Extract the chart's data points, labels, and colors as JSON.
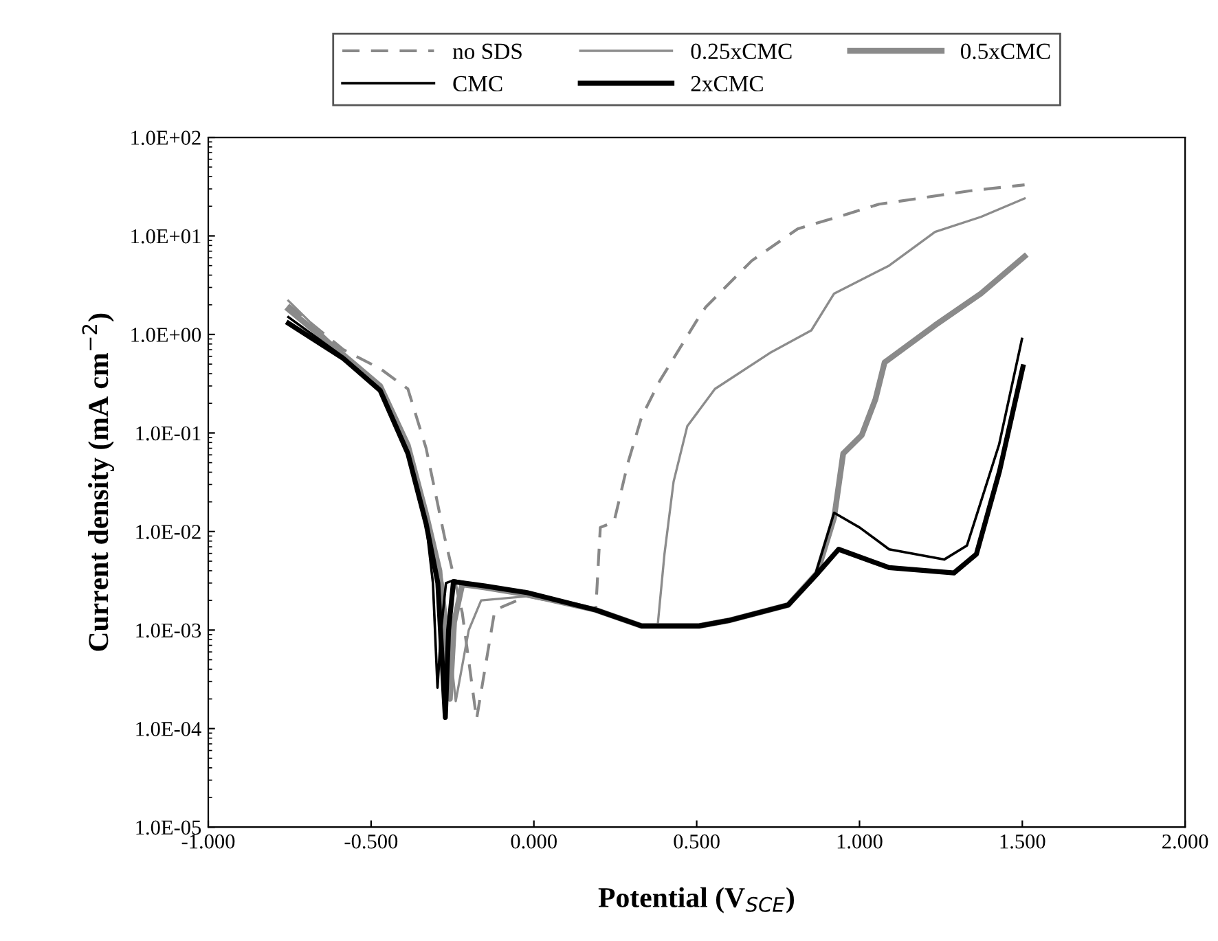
{
  "chart_data": {
    "type": "line",
    "xlabel": "Potential (V$_{SCE}$)",
    "ylabel": "Current density (mA cm$^{−2}$)",
    "xlim": [
      -1.0,
      2.0
    ],
    "ylim": [
      1e-05,
      100
    ],
    "log": "y",
    "xticks": [
      {
        "value": -1.0,
        "label": "-1.000"
      },
      {
        "value": -0.5,
        "label": "-0.500"
      },
      {
        "value": 0.0,
        "label": "0.000"
      },
      {
        "value": 0.5,
        "label": "0.500"
      },
      {
        "value": 1.0,
        "label": "1.000"
      },
      {
        "value": 1.5,
        "label": "1.500"
      },
      {
        "value": 2.0,
        "label": "2.000"
      }
    ],
    "yticks": [
      {
        "value": 1e-05,
        "label": "1.0E-05"
      },
      {
        "value": 0.0001,
        "label": "1.0E-04"
      },
      {
        "value": 0.001,
        "label": "1.0E-03"
      },
      {
        "value": 0.01,
        "label": "1.0E-02"
      },
      {
        "value": 0.1,
        "label": "1.0E-01"
      },
      {
        "value": 1,
        "label": "1.0E+00"
      },
      {
        "value": 10,
        "label": "1.0E+01"
      },
      {
        "value": 100,
        "label": "1.0E+02"
      }
    ],
    "grid": false,
    "legend": "top",
    "marker": "none",
    "series": [
      {
        "name": "no SDS",
        "color": "#888888",
        "line_style": "dashed",
        "x": [
          -0.754,
          -0.585,
          -0.472,
          -0.387,
          -0.331,
          -0.275,
          -0.22,
          -0.176,
          -0.12,
          -0.021,
          0.19,
          0.204,
          0.246,
          0.289,
          0.331,
          0.387,
          0.5,
          0.528,
          0.669,
          0.81,
          0.95,
          1.06,
          1.337,
          1.507
        ],
        "values": [
          2.0,
          0.7,
          0.45,
          0.28,
          0.07,
          0.009,
          0.0015,
          0.000125,
          0.0016,
          0.0022,
          0.0016,
          0.011,
          0.0125,
          0.05,
          0.146,
          0.34,
          1.38,
          1.9,
          5.6,
          11.8,
          16.2,
          21,
          28.6,
          33
        ]
      },
      {
        "name": "0.25xCMC",
        "color": "#8c8c8c",
        "line_style": "solid",
        "x": [
          -0.754,
          -0.585,
          -0.472,
          -0.387,
          -0.331,
          -0.28,
          -0.24,
          -0.2,
          -0.162,
          -0.021,
          0.19,
          0.331,
          0.38,
          0.401,
          0.429,
          0.471,
          0.556,
          0.725,
          0.852,
          0.922,
          1.091,
          1.232,
          1.373,
          1.507
        ],
        "values": [
          2.2,
          0.62,
          0.3,
          0.08,
          0.016,
          0.003,
          0.00019,
          0.001,
          0.002,
          0.0022,
          0.0016,
          0.0011,
          0.0011,
          0.0059,
          0.032,
          0.117,
          0.28,
          0.65,
          1.1,
          2.6,
          5.0,
          11,
          15.6,
          24
        ]
      },
      {
        "name": "0.5xCMC",
        "color": "#8a8a8a",
        "line_style": "solid",
        "x": [
          -0.754,
          -0.585,
          -0.472,
          -0.387,
          -0.331,
          -0.29,
          -0.258,
          -0.245,
          -0.22,
          -0.15,
          -0.021,
          0.19,
          0.331,
          0.507,
          0.598,
          0.781,
          0.87,
          0.922,
          0.95,
          1.007,
          1.049,
          1.077,
          1.232,
          1.373,
          1.507
        ],
        "values": [
          1.8,
          0.62,
          0.3,
          0.075,
          0.015,
          0.004,
          0.0002,
          0.0012,
          0.0029,
          0.0027,
          0.0023,
          0.0016,
          0.0011,
          0.0011,
          0.00125,
          0.0018,
          0.0038,
          0.0138,
          0.062,
          0.095,
          0.22,
          0.52,
          1.24,
          2.6,
          6.2
        ]
      },
      {
        "name": "CMC",
        "color": "#000000",
        "line_style": "solid",
        "x": [
          -0.754,
          -0.585,
          -0.472,
          -0.387,
          -0.331,
          -0.31,
          -0.296,
          -0.285,
          -0.27,
          -0.247,
          -0.15,
          -0.021,
          0.19,
          0.331,
          0.507,
          0.598,
          0.781,
          0.866,
          0.922,
          1.0,
          1.091,
          1.26,
          1.33,
          1.429,
          1.499
        ],
        "values": [
          1.5,
          0.59,
          0.28,
          0.065,
          0.012,
          0.003,
          0.00026,
          0.001,
          0.003,
          0.0032,
          0.0028,
          0.0024,
          0.0016,
          0.0011,
          0.0011,
          0.00125,
          0.0018,
          0.0038,
          0.0155,
          0.011,
          0.0066,
          0.0052,
          0.0072,
          0.077,
          0.9
        ]
      },
      {
        "name": "2xCMC",
        "color": "#000000",
        "line_style": "solid",
        "x": [
          -0.754,
          -0.585,
          -0.472,
          -0.387,
          -0.331,
          -0.295,
          -0.272,
          -0.262,
          -0.247,
          -0.15,
          -0.021,
          0.19,
          0.331,
          0.507,
          0.598,
          0.781,
          0.866,
          0.936,
          1.091,
          1.29,
          1.359,
          1.43,
          1.502
        ],
        "values": [
          1.3,
          0.57,
          0.27,
          0.062,
          0.012,
          0.003,
          0.00013,
          0.001,
          0.0031,
          0.0028,
          0.0024,
          0.0016,
          0.0011,
          0.0011,
          0.00125,
          0.0018,
          0.0036,
          0.0066,
          0.0043,
          0.0038,
          0.0059,
          0.041,
          0.47
        ]
      }
    ]
  }
}
